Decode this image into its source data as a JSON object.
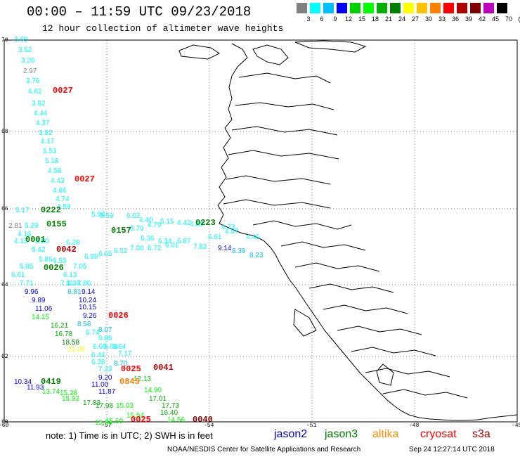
{
  "header": {
    "title": "00:00 – 11:59 UTC 09/23/2018",
    "subtitle": "12 hour collection of altimeter wave heights"
  },
  "color_scale": {
    "labels": [
      "3",
      "6",
      "9",
      "12",
      "15",
      "18",
      "21",
      "24",
      "27",
      "30",
      "33",
      "36",
      "39",
      "42",
      "45",
      "70",
      "(ft)"
    ],
    "colors": [
      "#808080",
      "#00ffff",
      "#00bfff",
      "#0000ff",
      "#00d000",
      "#00ff00",
      "#00b000",
      "#008000",
      "#ffff00",
      "#ffc000",
      "#ff8000",
      "#ff0000",
      "#b00000",
      "#800000",
      "#c000c0",
      "#000000"
    ]
  },
  "axes": {
    "lat_labels": [
      "70",
      "68",
      "66",
      "64",
      "62",
      "60"
    ],
    "lon_labels": [
      "-60",
      "-57",
      "-54",
      "-51",
      "-48",
      "-45"
    ]
  },
  "measurements": [
    {
      "t": "3.69",
      "c": "#00ffff"
    },
    {
      "t": "3.52",
      "c": "#00ffff"
    },
    {
      "t": "3.26",
      "c": "#00ffff"
    },
    {
      "t": "2.97",
      "c": "#808080"
    },
    {
      "t": "3.76",
      "c": "#00ffff"
    },
    {
      "t": "4.62",
      "c": "#00ffff"
    },
    {
      "t": "3.92",
      "c": "#00ffff"
    },
    {
      "t": "4.44",
      "c": "#00ffff"
    },
    {
      "t": "4.37",
      "c": "#00ffff"
    },
    {
      "t": "3.82",
      "c": "#00ffff"
    },
    {
      "t": "4.17",
      "c": "#00ffff"
    },
    {
      "t": "5.53",
      "c": "#00ffff"
    },
    {
      "t": "5.18",
      "c": "#00ffff"
    },
    {
      "t": "4.58",
      "c": "#00ffff"
    },
    {
      "t": "4.43",
      "c": "#00ffff"
    },
    {
      "t": "4.66",
      "c": "#00ffff"
    },
    {
      "t": "4.74",
      "c": "#00ffff"
    },
    {
      "t": "4.59",
      "c": "#00ffff"
    },
    {
      "t": "5.17",
      "c": "#00ffff"
    },
    {
      "t": "5.98",
      "c": "#00ffff"
    },
    {
      "t": "5.59",
      "c": "#00ffff"
    },
    {
      "t": "6.02",
      "c": "#00ffff"
    },
    {
      "t": "4.40",
      "c": "#00ffff"
    },
    {
      "t": "5.15",
      "c": "#00ffff"
    },
    {
      "t": "4.42",
      "c": "#00ffff"
    },
    {
      "t": "4.73",
      "c": "#00ffff"
    },
    {
      "t": "2.81",
      "c": "#808080"
    },
    {
      "t": "5.29",
      "c": "#00ffff"
    },
    {
      "t": "5.70",
      "c": "#00ffff"
    },
    {
      "t": "4.79",
      "c": "#00ffff"
    },
    {
      "t": "4.85",
      "c": "#00ffff"
    },
    {
      "t": "4.97",
      "c": "#00ffff"
    },
    {
      "t": "4.16",
      "c": "#00ffff"
    },
    {
      "t": "4.15",
      "c": "#00ffff"
    },
    {
      "t": "5.80",
      "c": "#00ffff"
    },
    {
      "t": "6.28",
      "c": "#00ffff"
    },
    {
      "t": "6.36",
      "c": "#00ffff"
    },
    {
      "t": "6.34",
      "c": "#00ffff"
    },
    {
      "t": "6.87",
      "c": "#00ffff"
    },
    {
      "t": "6.61",
      "c": "#00ffff"
    },
    {
      "t": "4.46",
      "c": "#00ffff"
    },
    {
      "t": "5.42",
      "c": "#00ffff"
    },
    {
      "t": "6.52",
      "c": "#00ffff"
    },
    {
      "t": "7.00",
      "c": "#00ffff"
    },
    {
      "t": "6.72",
      "c": "#00ffff"
    },
    {
      "t": "6.01",
      "c": "#00ffff"
    },
    {
      "t": "7.82",
      "c": "#00ffff"
    },
    {
      "t": "9.14",
      "c": "#0000ff"
    },
    {
      "t": "8.39",
      "c": "#00bfff"
    },
    {
      "t": "8.23",
      "c": "#00bfff"
    },
    {
      "t": "6.65",
      "c": "#00ffff"
    },
    {
      "t": "6.99",
      "c": "#00ffff"
    },
    {
      "t": "5.86",
      "c": "#00ffff"
    },
    {
      "t": "6.55",
      "c": "#00ffff"
    },
    {
      "t": "5.85",
      "c": "#00ffff"
    },
    {
      "t": "7.05",
      "c": "#00ffff"
    },
    {
      "t": "6.61",
      "c": "#00ffff"
    },
    {
      "t": "6.13",
      "c": "#00ffff"
    },
    {
      "t": "6.39",
      "c": "#00ffff"
    },
    {
      "t": "7.71",
      "c": "#00ffff"
    },
    {
      "t": "7.11",
      "c": "#00ffff"
    },
    {
      "t": "7.86",
      "c": "#00ffff"
    },
    {
      "t": "9.96",
      "c": "#0000ff"
    },
    {
      "t": "8.81",
      "c": "#00bfff"
    },
    {
      "t": "9.14",
      "c": "#0000ff"
    },
    {
      "t": "9.89",
      "c": "#0000ff"
    },
    {
      "t": "10.24",
      "c": "#0000ff"
    },
    {
      "t": "11.06",
      "c": "#0000ff"
    },
    {
      "t": "10.15",
      "c": "#0000ff"
    },
    {
      "t": "9.26",
      "c": "#0000ff"
    },
    {
      "t": "14.15",
      "c": "#00ff00"
    },
    {
      "t": "8.58",
      "c": "#00bfff"
    },
    {
      "t": "16.21",
      "c": "#00b000"
    },
    {
      "t": "8.07",
      "c": "#00bfff"
    },
    {
      "t": "16.78",
      "c": "#00b000"
    },
    {
      "t": "6.74",
      "c": "#00ffff"
    },
    {
      "t": "18.58",
      "c": "#008000"
    },
    {
      "t": "6.88",
      "c": "#00ffff"
    },
    {
      "t": "6.69",
      "c": "#00ffff"
    },
    {
      "t": "21.26",
      "c": "#ffff00"
    },
    {
      "t": "6.60",
      "c": "#00ffff"
    },
    {
      "t": "6.64",
      "c": "#00ffff"
    },
    {
      "t": "6.44",
      "c": "#00ffff"
    },
    {
      "t": "7.17",
      "c": "#00ffff"
    },
    {
      "t": "6.28",
      "c": "#00ffff"
    },
    {
      "t": "8.70",
      "c": "#00bfff"
    },
    {
      "t": "10.34",
      "c": "#0000ff"
    },
    {
      "t": "11.93",
      "c": "#0000ff"
    },
    {
      "t": "13.74",
      "c": "#00ff00"
    },
    {
      "t": "7.23",
      "c": "#00ffff"
    },
    {
      "t": "9.20",
      "c": "#0000ff"
    },
    {
      "t": "11.00",
      "c": "#0000ff"
    },
    {
      "t": "12.13",
      "c": "#00d000"
    },
    {
      "t": "15.28",
      "c": "#00ff00"
    },
    {
      "t": "11.87",
      "c": "#0000ff"
    },
    {
      "t": "14.90",
      "c": "#00ff00"
    },
    {
      "t": "15.92",
      "c": "#00ff00"
    },
    {
      "t": "17.01",
      "c": "#00b000"
    },
    {
      "t": "17.83",
      "c": "#00b000"
    },
    {
      "t": "17.73",
      "c": "#00b000"
    },
    {
      "t": "17.98",
      "c": "#00b000"
    },
    {
      "t": "15.03",
      "c": "#00ff00"
    },
    {
      "t": "16.40",
      "c": "#00b000"
    },
    {
      "t": "15.54",
      "c": "#00ff00"
    },
    {
      "t": "15.60",
      "c": "#00ff00"
    },
    {
      "t": "15.56",
      "c": "#00ff00"
    },
    {
      "t": "14.56",
      "c": "#00ff00"
    }
  ],
  "time_labels": [
    {
      "t": "0027",
      "c": "#ff0000"
    },
    {
      "t": "0027",
      "c": "#ff0000"
    },
    {
      "t": "0222",
      "c": "#008000"
    },
    {
      "t": "0155",
      "c": "#008000"
    },
    {
      "t": "0157",
      "c": "#008000"
    },
    {
      "t": "0223",
      "c": "#008000"
    },
    {
      "t": "0001",
      "c": "#008000"
    },
    {
      "t": "0042",
      "c": "#b00000"
    },
    {
      "t": "0026",
      "c": "#008000"
    },
    {
      "t": "0026",
      "c": "#ff0000"
    },
    {
      "t": "0025",
      "c": "#ff0000"
    },
    {
      "t": "0041",
      "c": "#b00000"
    },
    {
      "t": "0419",
      "c": "#008000"
    },
    {
      "t": "0845",
      "c": "#ff8000"
    },
    {
      "t": "0025",
      "c": "#ff0000"
    },
    {
      "t": "0040",
      "c": "#800000"
    }
  ],
  "footer": {
    "note": "note:  1) Time is in UTC;  2) SWH is in feet",
    "legend": [
      {
        "label": "jason2",
        "color": "#0000cc"
      },
      {
        "label": "jason3",
        "color": "#008000"
      },
      {
        "label": "altika",
        "color": "#ff8c00"
      },
      {
        "label": "cryosat",
        "color": "#ff0000"
      },
      {
        "label": "s3a",
        "color": "#b00000"
      }
    ],
    "credit": "NOAA/NESDIS Center for Satellite Applications and Research",
    "timestamp": "Sep 24 12:27:14 UTC 2018"
  }
}
